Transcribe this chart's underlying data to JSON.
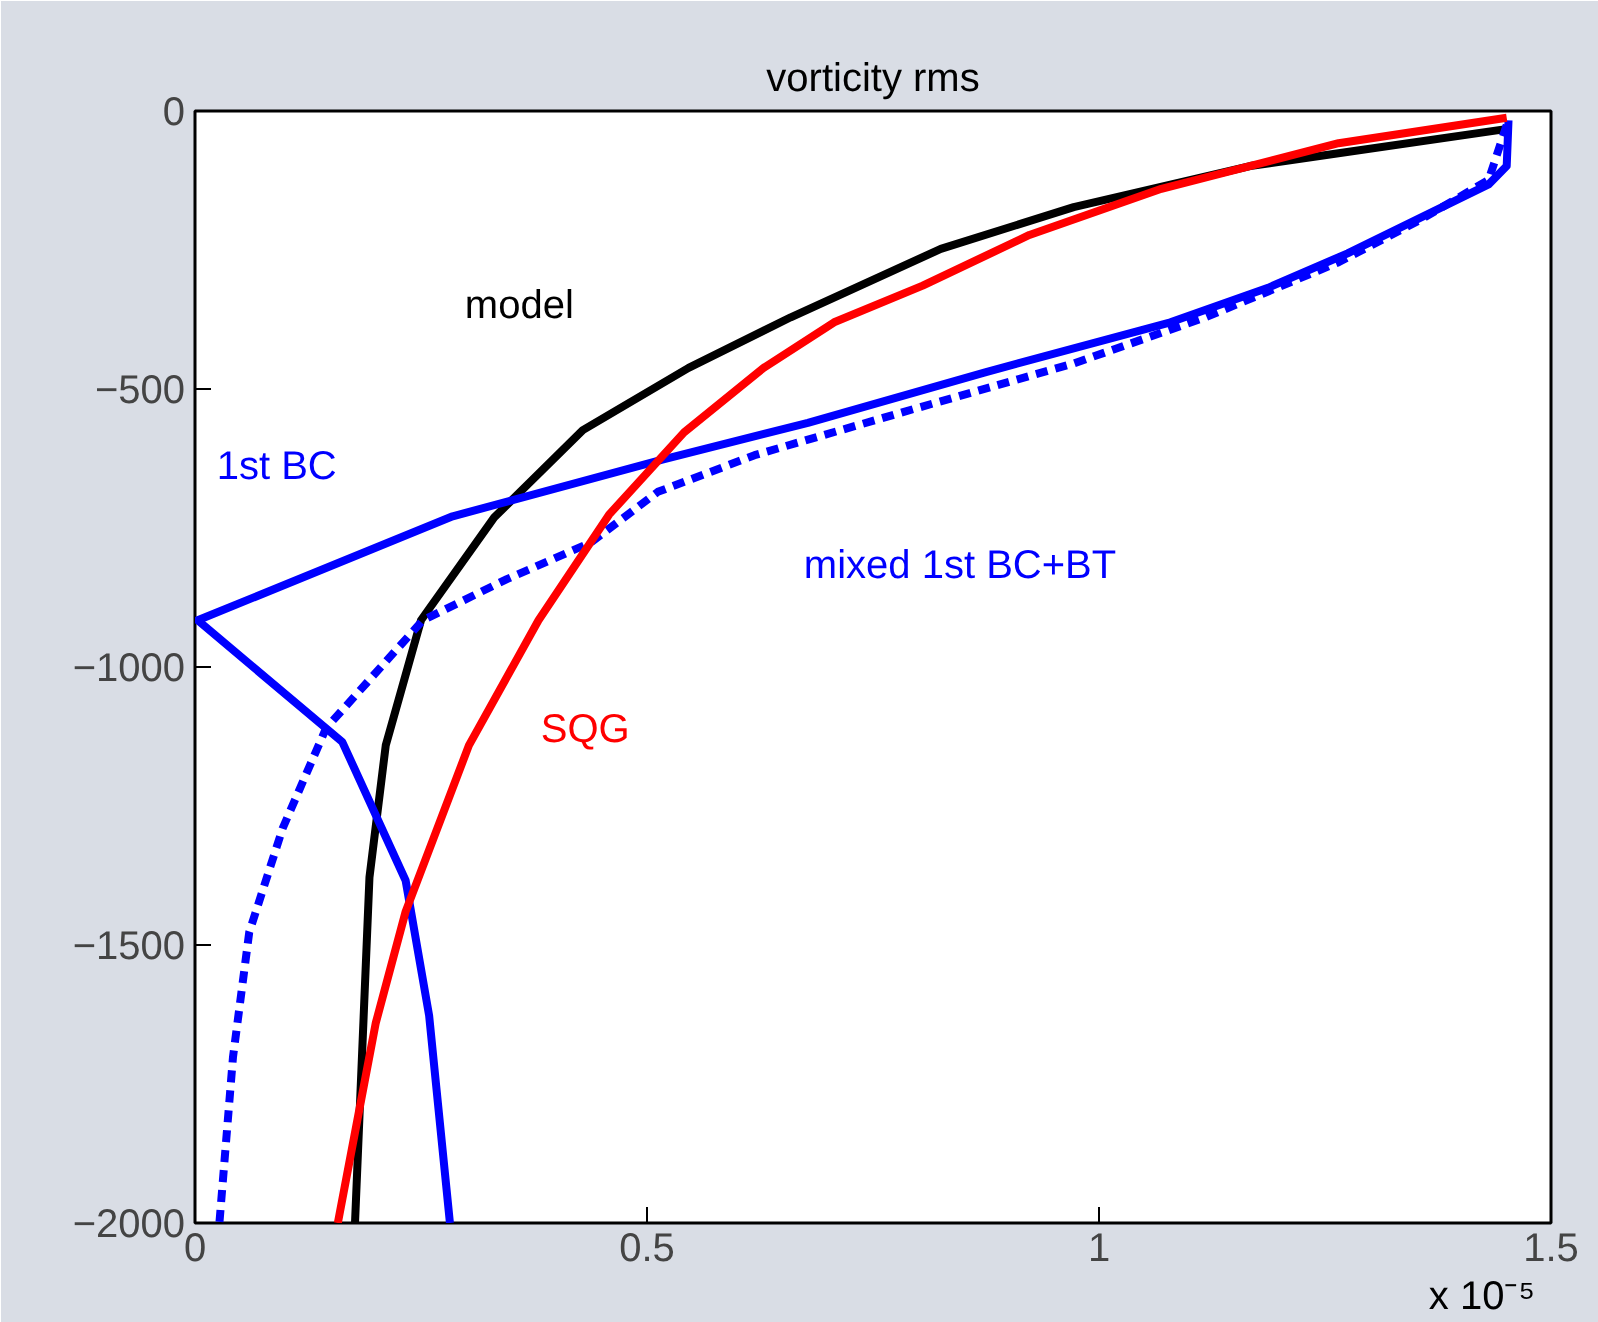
{
  "chart_data": {
    "type": "line",
    "title": "vorticity rms",
    "xlim": [
      0,
      1.5
    ],
    "xticks": [
      0,
      0.5,
      1,
      1.5
    ],
    "ylim": [
      -2000,
      0
    ],
    "yticks": [
      {
        "value": -2000,
        "label": "−2000"
      },
      {
        "value": -1500,
        "label": "−1500"
      },
      {
        "value": -1000,
        "label": "−1000"
      },
      {
        "value": -500,
        "label": "−500"
      },
      0
    ],
    "grid": false,
    "series": [
      {
        "name": "model",
        "color": "#000000",
        "line_style": "solid",
        "x": [
          1.448,
          1.167,
          0.972,
          0.825,
          0.659,
          0.546,
          0.429,
          0.331,
          0.25,
          0.211,
          0.193,
          0.177
        ],
        "values": [
          -33,
          -99,
          -173,
          -248,
          -371,
          -462,
          -574,
          -731,
          -916,
          -1141,
          -1378,
          -2000
        ]
      },
      {
        "name": "1st BC",
        "color": "#0000ff",
        "line_style": "solid",
        "x": [
          1.453,
          1.451,
          1.431,
          1.275,
          1.187,
          1.079,
          0.874,
          0.678,
          0.517,
          0.285,
          0.003,
          0.163,
          0.233,
          0.259,
          0.282
        ],
        "values": [
          -17,
          -99,
          -132,
          -256,
          -318,
          -380,
          -470,
          -561,
          -627,
          -729,
          -916,
          -1135,
          -1384,
          -1627,
          -2000
        ]
      },
      {
        "name": "mixed 1st BC+BT",
        "color": "#0000ff",
        "line_style": "dashed",
        "x": [
          1.451,
          1.431,
          1.353,
          1.265,
          1.118,
          0.972,
          0.795,
          0.619,
          0.512,
          0.438,
          0.345,
          0.252,
          0.145,
          0.097,
          0.06,
          0.042,
          0.027
        ],
        "values": [
          -25,
          -124,
          -198,
          -272,
          -371,
          -454,
          -536,
          -619,
          -685,
          -776,
          -842,
          -916,
          -1110,
          -1290,
          -1477,
          -1702,
          -2000
        ]
      },
      {
        "name": "SQG",
        "color": "#ff0000",
        "line_style": "solid",
        "x": [
          1.451,
          1.265,
          1.069,
          0.923,
          0.805,
          0.707,
          0.629,
          0.541,
          0.458,
          0.38,
          0.303,
          0.233,
          0.2,
          0.158
        ],
        "values": [
          -12,
          -58,
          -140,
          -223,
          -314,
          -380,
          -462,
          -578,
          -726,
          -916,
          -1141,
          -1440,
          -1640,
          -2000
        ]
      }
    ],
    "annotations": [
      "x 10⁻⁵"
    ]
  }
}
